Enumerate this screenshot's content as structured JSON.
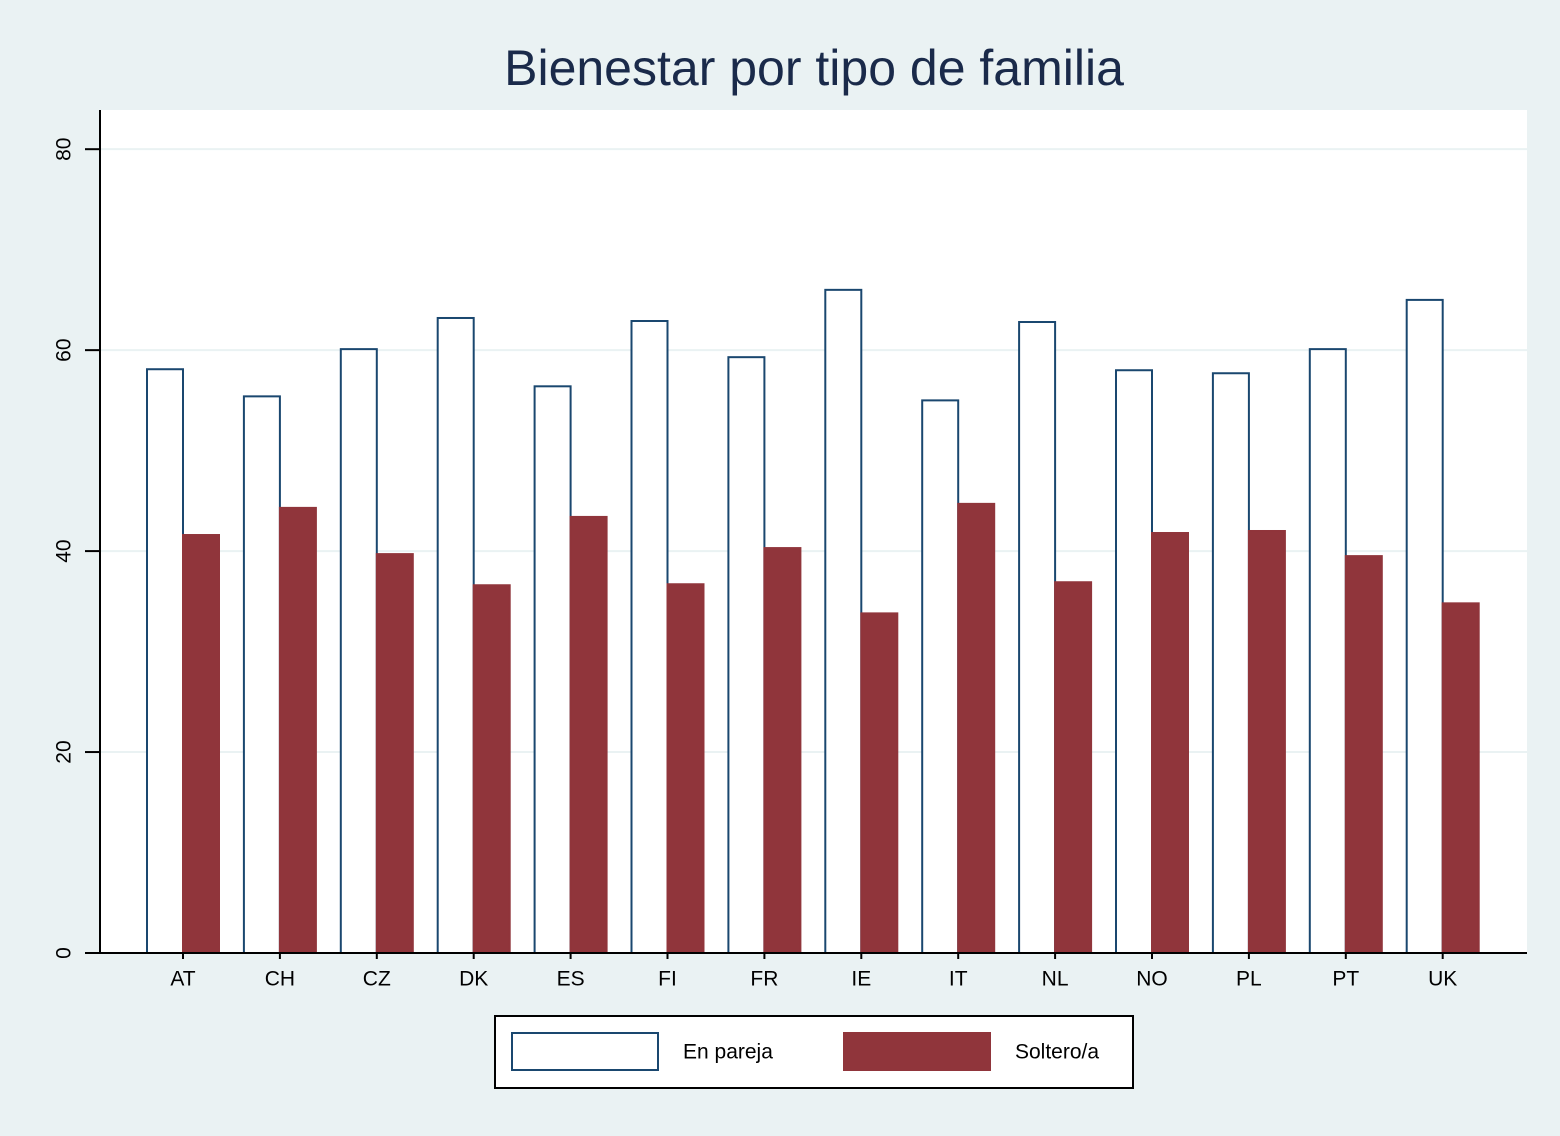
{
  "chart_data": {
    "type": "bar",
    "title": "Bienestar por tipo de familia",
    "categories": [
      "AT",
      "CH",
      "CZ",
      "DK",
      "ES",
      "FI",
      "FR",
      "IE",
      "IT",
      "NL",
      "NO",
      "PL",
      "PT",
      "UK"
    ],
    "series": [
      {
        "name": "En pareja",
        "color": "#ffffff",
        "edgecolor": "#1a476f",
        "values": [
          58.1,
          55.4,
          60.1,
          63.2,
          56.4,
          62.9,
          59.3,
          66.0,
          55.0,
          62.8,
          58.0,
          57.7,
          60.1,
          65.0
        ]
      },
      {
        "name": "Soltero/a",
        "color": "#90353b",
        "edgecolor": "#90353b",
        "values": [
          41.6,
          44.3,
          39.7,
          36.6,
          43.4,
          36.7,
          40.3,
          33.8,
          44.7,
          36.9,
          41.8,
          42.0,
          39.5,
          34.8
        ]
      }
    ],
    "ylim": [
      0,
      83.9
    ],
    "yticks": [
      0,
      20,
      40,
      60,
      80
    ],
    "grid": true,
    "legend": "bottom"
  }
}
